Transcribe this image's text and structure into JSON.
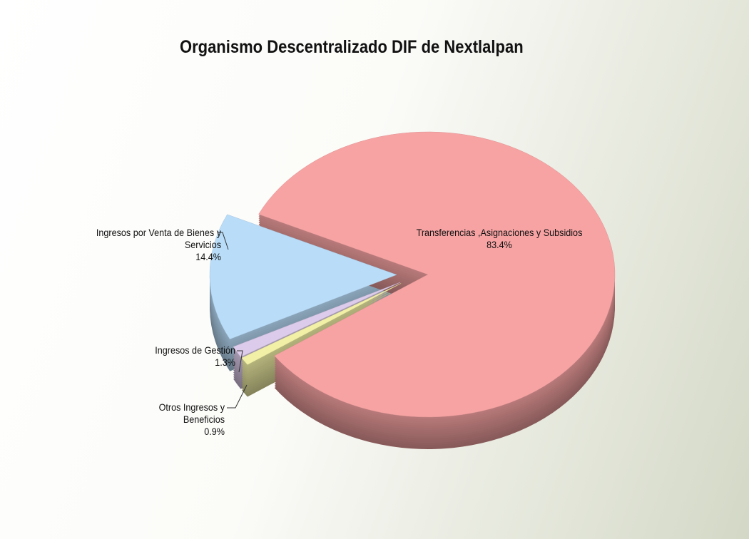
{
  "chart_data": {
    "type": "pie",
    "title": "Organismo Descentralizado DIF de Nextlalpan",
    "categories": [
      "Transferencias ,Asignaciones y Subsidios",
      "Otros Ingresos y Beneficios",
      "Ingresos de Gestión",
      "Ingresos por Venta de Bienes y Servicios"
    ],
    "values": [
      83.4,
      0.9,
      1.3,
      14.4
    ],
    "value_labels": [
      "83.4%",
      "0.9%",
      "1.3%",
      "14.4%"
    ],
    "colors": [
      "#f7a3a3",
      "#f2f0a6",
      "#dccbea",
      "#b9dcf8"
    ]
  }
}
